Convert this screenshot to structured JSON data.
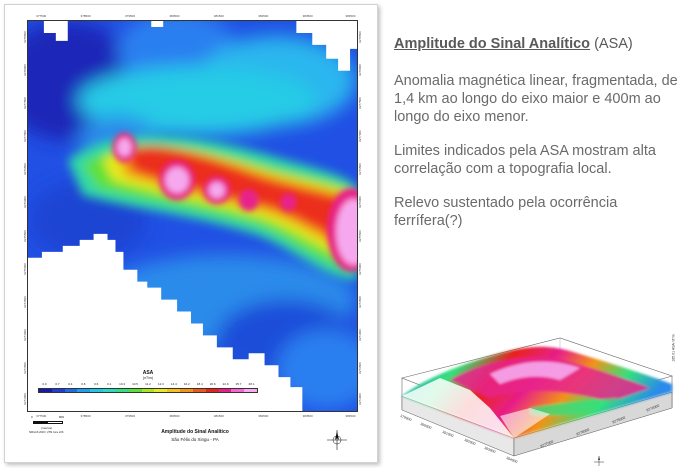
{
  "heading": {
    "underlined": "Amplitude do Sinal Analítico",
    "suffix": "(ASA)"
  },
  "paragraphs": [
    "Anomalia magnética linear, fragmentada, de 1,4 km ao longo do eixo maior  e 400m ao longo do eixo menor.",
    "Limites indicados pela ASA mostram alta correlação com a topografia local.",
    "Relevo sustentado pela ocorrência ferrífera(?)"
  ],
  "map": {
    "title": "Amplitude do Sinal Analítico",
    "subtitle": "São Félix do Xingu - PA",
    "legend": {
      "title": "ASA",
      "unit": "(nT/m)",
      "values": [
        "0.0",
        "0.7",
        "0.4",
        "0.6",
        "0.6",
        "0.1",
        "10.3",
        "10.5",
        "11.2",
        "12.3",
        "14.4",
        "16.2",
        "18.4",
        "20.6",
        "22.9",
        "25.7",
        "28.1"
      ],
      "colors": [
        "#1a1aa8",
        "#1f3cd6",
        "#1f6be8",
        "#1e9fee",
        "#1fc9e6",
        "#27dcc0",
        "#34e07c",
        "#5be038",
        "#a8e61e",
        "#e7ea1e",
        "#f4c21a",
        "#f29217",
        "#ee5a16",
        "#e8221a",
        "#e81f8a",
        "#f267d6",
        "#f7aaf0"
      ]
    },
    "coords_top": [
      "377500",
      "378500",
      "379500",
      "380500",
      "381500",
      "382500",
      "383500",
      "384500"
    ],
    "coords_bottom": [
      "377500",
      "378500",
      "379500",
      "380500",
      "381500",
      "382500",
      "383500",
      "384500"
    ],
    "coords_left": [
      "9278500",
      "9278000",
      "9277500",
      "9277000",
      "9276500",
      "9276000",
      "9275500",
      "9275000",
      "9274500",
      "9274000",
      "9273500",
      "9273000"
    ],
    "scale": {
      "left": "0",
      "right": "800",
      "unit": "(metros)",
      "note": "SIRGAS 2000 / UTM zone 22S"
    }
  },
  "block3d": {
    "x_ticks": [
      "379000",
      "380000",
      "381000",
      "382000",
      "383000",
      "384000"
    ],
    "y_ticks": [
      "9277000",
      "9276000",
      "9275000",
      "9274000"
    ],
    "z_label": "185.01 ASA nT/m"
  },
  "colors": {
    "text_gray": "#6a6a6a",
    "heading_gray": "#595959"
  }
}
